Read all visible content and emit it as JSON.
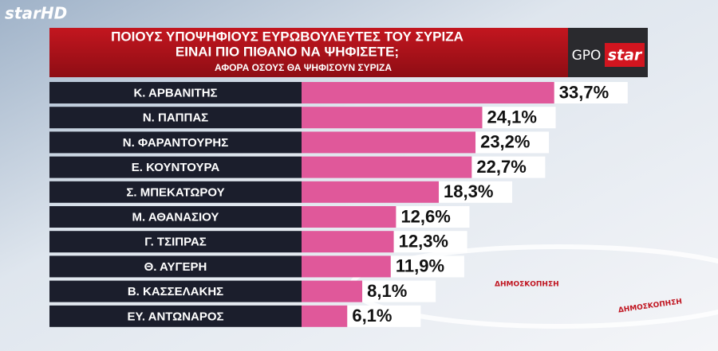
{
  "channel_logo": "starHD",
  "poll_logo": {
    "left": "GPO",
    "right": "star"
  },
  "watermark": [
    "ΔΗΜΟΣΚΟΠΗΣΗ",
    "ΔΗΜΟΣΚΟΠΗΣΗ"
  ],
  "chart_data": {
    "type": "bar",
    "orientation": "horizontal",
    "title": [
      "ΠΟΙΟΥΣ ΥΠΟΨΗΦΙΟΥΣ ΕΥΡΩΒΟΥΛΕΥΤΕΣ ΤΟΥ ΣΥΡΙΖΑ",
      "ΕΙΝΑΙ ΠΙΟ ΠΙΘΑΝΟ ΝΑ ΨΗΦΙΣΕΤΕ;"
    ],
    "subtitle": "ΑΦΟΡΑ ΟΣΟΥΣ ΘΑ ΨΗΦΙΣΟΥΝ ΣΥΡΙΖΑ",
    "categories": [
      "Κ. ΑΡΒΑΝΙΤΗΣ",
      "Ν. ΠΑΠΠΑΣ",
      "Ν. ΦΑΡΑΝΤΟΥΡΗΣ",
      "Ε. ΚΟΥΝΤΟΥΡΑ",
      "Σ. ΜΠΕΚΑΤΩΡΟΥ",
      "Μ. ΑΘΑΝΑΣΙΟΥ",
      "Γ. ΤΣΙΠΡΑΣ",
      "Θ. ΑΥΓΕΡΗ",
      "Β. ΚΑΣΣΕΛΑΚΗΣ",
      "ΕΥ. ΑΝΤΩΝΑΡΟΣ"
    ],
    "values": [
      33.7,
      24.1,
      23.2,
      22.7,
      18.3,
      12.6,
      12.3,
      11.9,
      8.1,
      6.1
    ],
    "value_labels": [
      "33,7%",
      "24,1%",
      "23,2%",
      "22,7%",
      "18,3%",
      "12,6%",
      "12,3%",
      "11,9%",
      "8,1%",
      "6,1%"
    ],
    "color": "#e0589a"
  }
}
